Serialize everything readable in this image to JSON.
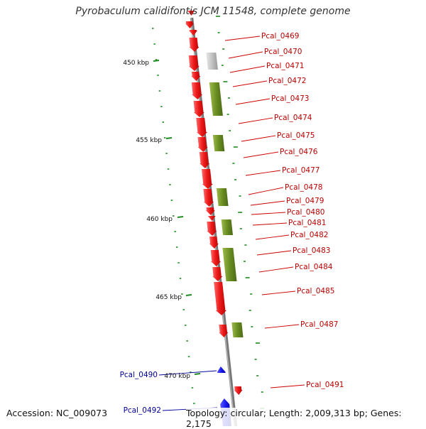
{
  "title": "Pyrobaculum calidifontis JCM 11548, complete genome",
  "accession": "Accession: NC_009073",
  "topology": "Topology: circular; Length: 2,009,313 bp; Genes: 2,175",
  "colors": {
    "forward_gene": "#ee1c1c",
    "reverse_gene": "#6b8e23",
    "other_gene": "#bbbbbb",
    "highlight_gene": "#1a1aee",
    "gene_label_red": "#bb0000",
    "gene_label_blue": "#000099",
    "backbone": "#888888",
    "gc_tick": "#1f8a1f"
  },
  "scale_labels": [
    "450 kbp",
    "455 kbp",
    "460 kbp",
    "465 kbp",
    "470 kbp"
  ],
  "gene_labels": [
    {
      "text": "Pcal_0469",
      "side": "right",
      "color": "red"
    },
    {
      "text": "Pcal_0470",
      "side": "right",
      "color": "red"
    },
    {
      "text": "Pcal_0471",
      "side": "right",
      "color": "red"
    },
    {
      "text": "Pcal_0472",
      "side": "right",
      "color": "red"
    },
    {
      "text": "Pcal_0473",
      "side": "right",
      "color": "red"
    },
    {
      "text": "Pcal_0474",
      "side": "right",
      "color": "red"
    },
    {
      "text": "Pcal_0475",
      "side": "right",
      "color": "red"
    },
    {
      "text": "Pcal_0476",
      "side": "right",
      "color": "red"
    },
    {
      "text": "Pcal_0477",
      "side": "right",
      "color": "red"
    },
    {
      "text": "Pcal_0478",
      "side": "right",
      "color": "red"
    },
    {
      "text": "Pcal_0479",
      "side": "right",
      "color": "red"
    },
    {
      "text": "Pcal_0480",
      "side": "right",
      "color": "red"
    },
    {
      "text": "Pcal_0481",
      "side": "right",
      "color": "red"
    },
    {
      "text": "Pcal_0482",
      "side": "right",
      "color": "red"
    },
    {
      "text": "Pcal_0483",
      "side": "right",
      "color": "red"
    },
    {
      "text": "Pcal_0484",
      "side": "right",
      "color": "red"
    },
    {
      "text": "Pcal_0485",
      "side": "right",
      "color": "red"
    },
    {
      "text": "Pcal_0487",
      "side": "right",
      "color": "red"
    },
    {
      "text": "Pcal_0491",
      "side": "right",
      "color": "red"
    },
    {
      "text": "Pcal_0490",
      "side": "left",
      "color": "blue"
    },
    {
      "text": "Pcal_0492",
      "side": "left",
      "color": "blue"
    }
  ]
}
